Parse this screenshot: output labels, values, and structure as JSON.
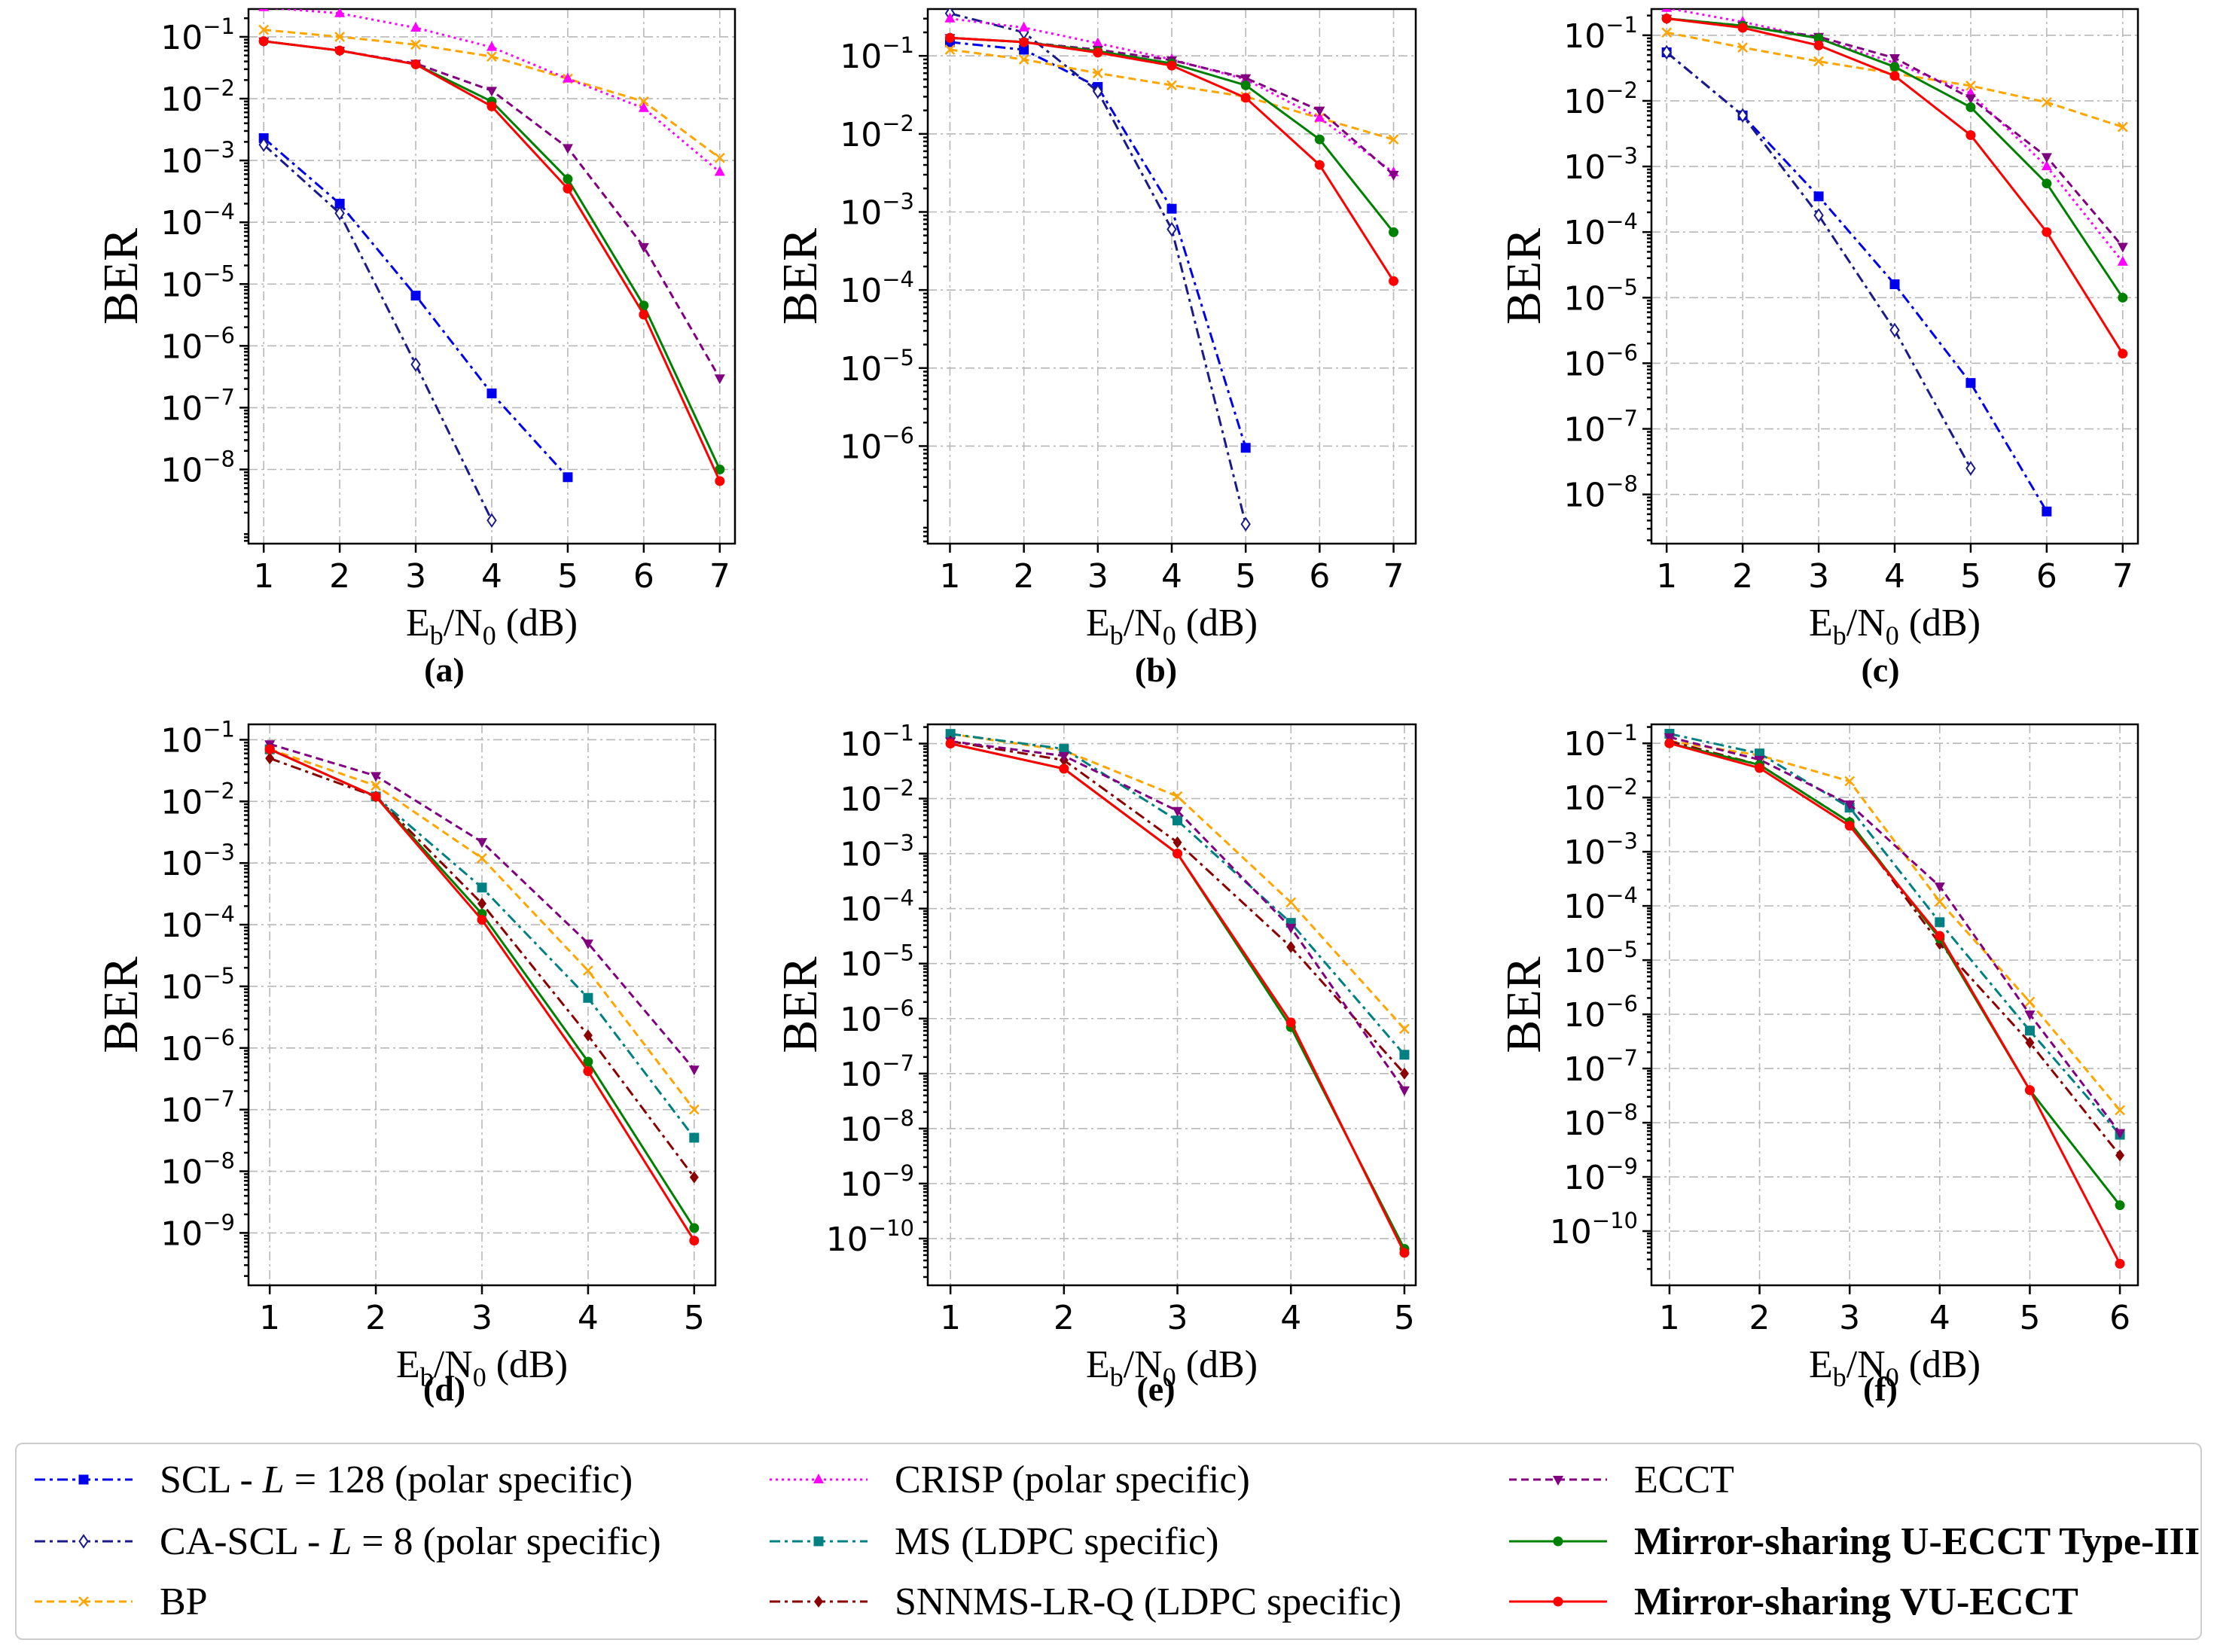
{
  "series_styles": [
    {
      "name": "SCL - L = 128 (polar specific)",
      "color": "#0000ee",
      "dash": "14 6 4 6",
      "marker": "square-filled",
      "legend_parts": [
        "SCL - ",
        "L",
        " = 128 (polar specific)"
      ],
      "bold": false
    },
    {
      "name": "CA-SCL - L = 8 (polar specific)",
      "color": "#1a1a8a",
      "dash": "14 6 4 6",
      "marker": "diamond-open",
      "legend_parts": [
        "CA-SCL - ",
        "L",
        " = 8 (polar specific)"
      ],
      "bold": false
    },
    {
      "name": "BP",
      "color": "#ffa500",
      "dash": "10 6",
      "marker": "x",
      "legend_parts": [
        "BP"
      ],
      "bold": false
    },
    {
      "name": "CRISP (polar specific)",
      "color": "#ff00ff",
      "dash": "3 5",
      "marker": "triangle-up",
      "legend_parts": [
        "CRISP (polar specific)"
      ],
      "bold": false
    },
    {
      "name": "MS (LDPC specific)",
      "color": "#008080",
      "dash": "14 6 4 6",
      "marker": "square-filled",
      "legend_parts": [
        "MS (LDPC specific)"
      ],
      "bold": false
    },
    {
      "name": "SNNMS-LR-Q (LDPC specific)",
      "color": "#8b0000",
      "dash": "14 6 4 6",
      "marker": "diamond-filled",
      "legend_parts": [
        "SNNMS-LR-Q (LDPC specific)"
      ],
      "bold": false
    },
    {
      "name": "ECCT",
      "color": "#800080",
      "dash": "10 6",
      "marker": "triangle-down",
      "legend_parts": [
        "ECCT"
      ],
      "bold": false
    },
    {
      "name": "Mirror-sharing U-ECCT Type-III",
      "color": "#008000",
      "dash": "",
      "marker": "circle",
      "legend_parts": [
        "Mirror-sharing U-ECCT Type-III"
      ],
      "bold": true
    },
    {
      "name": "Mirror-sharing VU-ECCT",
      "color": "#ff0000",
      "dash": "",
      "marker": "circle",
      "legend_parts": [
        "Mirror-sharing VU-ECCT"
      ],
      "bold": true
    }
  ],
  "chart_data": [
    {
      "panel_label": "(a)",
      "type": "line",
      "ylabel": "BER",
      "xlabel": "Eb/N0 (dB)",
      "xlim": [
        0.8,
        7.2
      ],
      "ylog_range": [
        -9.2,
        -0.55
      ],
      "xticks": [
        1,
        2,
        3,
        4,
        5,
        6,
        7
      ],
      "yticks_exp": [
        -1,
        -2,
        -3,
        -4,
        -5,
        -6,
        -7,
        -8
      ],
      "series": [
        {
          "name": "SCL - L = 128 (polar specific)",
          "x": [
            1,
            2,
            3,
            4,
            5
          ],
          "y": [
            0.0023,
            0.0002,
            6.5e-06,
            1.7e-07,
            7.5e-09
          ]
        },
        {
          "name": "CA-SCL - L = 8 (polar specific)",
          "x": [
            1,
            2,
            3,
            4
          ],
          "y": [
            0.0018,
            0.00014,
            5e-07,
            1.5e-09
          ]
        },
        {
          "name": "BP",
          "x": [
            1,
            2,
            3,
            4,
            5,
            6,
            7
          ],
          "y": [
            0.13,
            0.1,
            0.075,
            0.048,
            0.021,
            0.009,
            0.0011
          ]
        },
        {
          "name": "CRISP (polar specific)",
          "x": [
            1,
            2,
            3,
            4,
            5,
            6,
            7
          ],
          "y": [
            0.3,
            0.24,
            0.14,
            0.068,
            0.021,
            0.007,
            0.00065
          ]
        },
        {
          "name": "ECCT",
          "x": [
            1,
            2,
            3,
            4,
            5,
            6,
            7
          ],
          "y": [
            0.085,
            0.06,
            0.037,
            0.0135,
            0.0016,
            4e-05,
            3e-07
          ]
        },
        {
          "name": "Mirror-sharing U-ECCT Type-III",
          "x": [
            1,
            2,
            3,
            4,
            5,
            6,
            7
          ],
          "y": [
            0.085,
            0.06,
            0.036,
            0.009,
            0.0005,
            4.5e-06,
            1e-08
          ]
        },
        {
          "name": "Mirror-sharing VU-ECCT",
          "x": [
            1,
            2,
            3,
            4,
            5,
            6,
            7
          ],
          "y": [
            0.085,
            0.06,
            0.036,
            0.0075,
            0.00035,
            3.2e-06,
            6.5e-09
          ]
        }
      ]
    },
    {
      "panel_label": "(b)",
      "type": "line",
      "ylabel": "BER",
      "xlabel": "Eb/N0 (dB)",
      "xlim": [
        0.7,
        7.3
      ],
      "ylog_range": [
        -7.25,
        -0.4
      ],
      "xticks": [
        1,
        2,
        3,
        4,
        5,
        6,
        7
      ],
      "yticks_exp": [
        -1,
        -2,
        -3,
        -4,
        -5,
        -6
      ],
      "series": [
        {
          "name": "SCL - L = 128 (polar specific)",
          "x": [
            1,
            2,
            3,
            4,
            5
          ],
          "y": [
            0.15,
            0.12,
            0.04,
            0.0011,
            9.5e-07
          ]
        },
        {
          "name": "CA-SCL - L = 8 (polar specific)",
          "x": [
            1,
            2,
            3,
            4,
            5
          ],
          "y": [
            0.35,
            0.2,
            0.035,
            0.0006,
            1e-07
          ]
        },
        {
          "name": "BP",
          "x": [
            1,
            2,
            3,
            4,
            5,
            6,
            7
          ],
          "y": [
            0.12,
            0.09,
            0.06,
            0.042,
            0.03,
            0.016,
            0.0085
          ]
        },
        {
          "name": "CRISP (polar specific)",
          "x": [
            1,
            2,
            3,
            4,
            5,
            6,
            7
          ],
          "y": [
            0.3,
            0.23,
            0.145,
            0.09,
            0.05,
            0.016,
            0.0032
          ]
        },
        {
          "name": "ECCT",
          "x": [
            1,
            2,
            3,
            4,
            5,
            6,
            7
          ],
          "y": [
            0.17,
            0.15,
            0.12,
            0.088,
            0.052,
            0.02,
            0.003
          ]
        },
        {
          "name": "Mirror-sharing U-ECCT Type-III",
          "x": [
            1,
            2,
            3,
            4,
            5,
            6,
            7
          ],
          "y": [
            0.17,
            0.15,
            0.115,
            0.08,
            0.042,
            0.0085,
            0.00055
          ]
        },
        {
          "name": "Mirror-sharing VU-ECCT",
          "x": [
            1,
            2,
            3,
            4,
            5,
            6,
            7
          ],
          "y": [
            0.17,
            0.15,
            0.11,
            0.075,
            0.029,
            0.004,
            0.00013
          ]
        }
      ]
    },
    {
      "panel_label": "(c)",
      "type": "line",
      "ylabel": "BER",
      "xlabel": "Eb/N0 (dB)",
      "xlim": [
        0.8,
        7.2
      ],
      "ylog_range": [
        -8.75,
        -0.6
      ],
      "xticks": [
        1,
        2,
        3,
        4,
        5,
        6,
        7
      ],
      "yticks_exp": [
        -1,
        -2,
        -3,
        -4,
        -5,
        -6,
        -7,
        -8
      ],
      "series": [
        {
          "name": "SCL - L = 128 (polar specific)",
          "x": [
            1,
            2,
            3,
            4,
            5,
            6
          ],
          "y": [
            0.055,
            0.006,
            0.00035,
            1.6e-05,
            5e-07,
            5.5e-09
          ]
        },
        {
          "name": "CA-SCL - L = 8 (polar specific)",
          "x": [
            1,
            2,
            3,
            4,
            5
          ],
          "y": [
            0.055,
            0.006,
            0.00018,
            3.2e-06,
            2.5e-08
          ]
        },
        {
          "name": "BP",
          "x": [
            1,
            2,
            3,
            4,
            5,
            6,
            7
          ],
          "y": [
            0.11,
            0.065,
            0.04,
            0.026,
            0.017,
            0.0095,
            0.004
          ]
        },
        {
          "name": "CRISP (polar specific)",
          "x": [
            1,
            2,
            3,
            4,
            5,
            6,
            7
          ],
          "y": [
            0.26,
            0.16,
            0.09,
            0.038,
            0.013,
            0.001,
            3.5e-05
          ]
        },
        {
          "name": "ECCT",
          "x": [
            1,
            2,
            3,
            4,
            5,
            6,
            7
          ],
          "y": [
            0.18,
            0.14,
            0.095,
            0.045,
            0.011,
            0.0014,
            6e-05
          ]
        },
        {
          "name": "Mirror-sharing U-ECCT Type-III",
          "x": [
            1,
            2,
            3,
            4,
            5,
            6,
            7
          ],
          "y": [
            0.18,
            0.14,
            0.09,
            0.033,
            0.008,
            0.00055,
            1e-05
          ]
        },
        {
          "name": "Mirror-sharing VU-ECCT",
          "x": [
            1,
            2,
            3,
            4,
            5,
            6,
            7
          ],
          "y": [
            0.18,
            0.13,
            0.07,
            0.024,
            0.003,
            0.0001,
            1.4e-06
          ]
        }
      ]
    },
    {
      "panel_label": "(d)",
      "type": "line",
      "ylabel": "BER",
      "xlabel": "Eb/N0 (dB)",
      "xlim": [
        0.8,
        5.2
      ],
      "ylog_range": [
        -9.85,
        -0.75
      ],
      "xticks": [
        1,
        2,
        3,
        4,
        5
      ],
      "yticks_exp": [
        -1,
        -2,
        -3,
        -4,
        -5,
        -6,
        -7,
        -8,
        -9
      ],
      "series": [
        {
          "name": "BP",
          "x": [
            1,
            2,
            3,
            4,
            5
          ],
          "y": [
            0.07,
            0.018,
            0.0012,
            1.8e-05,
            1e-07
          ]
        },
        {
          "name": "MS (LDPC specific)",
          "x": [
            1,
            2,
            3,
            4,
            5
          ],
          "y": [
            0.07,
            0.012,
            0.0004,
            6.5e-06,
            3.5e-08
          ]
        },
        {
          "name": "SNNMS-LR-Q (LDPC specific)",
          "x": [
            1,
            2,
            3,
            4,
            5
          ],
          "y": [
            0.05,
            0.012,
            0.00022,
            1.6e-06,
            8e-09
          ]
        },
        {
          "name": "ECCT",
          "x": [
            1,
            2,
            3,
            4,
            5
          ],
          "y": [
            0.085,
            0.026,
            0.0022,
            5e-05,
            4.5e-07
          ]
        },
        {
          "name": "Mirror-sharing U-ECCT Type-III",
          "x": [
            1,
            2,
            3,
            4,
            5
          ],
          "y": [
            0.07,
            0.012,
            0.00015,
            6e-07,
            1.2e-09
          ]
        },
        {
          "name": "Mirror-sharing VU-ECCT",
          "x": [
            1,
            2,
            3,
            4,
            5
          ],
          "y": [
            0.07,
            0.012,
            0.00012,
            4.2e-07,
            7.5e-10
          ]
        }
      ]
    },
    {
      "panel_label": "(e)",
      "type": "line",
      "ylabel": "BER",
      "xlabel": "Eb/N0 (dB)",
      "xlim": [
        0.8,
        5.1
      ],
      "ylog_range": [
        -10.85,
        -0.65
      ],
      "xticks": [
        1,
        2,
        3,
        4,
        5
      ],
      "yticks_exp": [
        -1,
        -2,
        -3,
        -4,
        -5,
        -6,
        -7,
        -8,
        -9,
        -10
      ],
      "series": [
        {
          "name": "BP",
          "x": [
            1,
            2,
            3,
            4,
            5
          ],
          "y": [
            0.15,
            0.075,
            0.011,
            0.00013,
            6.5e-07
          ]
        },
        {
          "name": "MS (LDPC specific)",
          "x": [
            1,
            2,
            3,
            4,
            5
          ],
          "y": [
            0.15,
            0.08,
            0.004,
            5.5e-05,
            2.2e-07
          ]
        },
        {
          "name": "SNNMS-LR-Q (LDPC specific)",
          "x": [
            1,
            2,
            3,
            4,
            5
          ],
          "y": [
            0.11,
            0.05,
            0.0016,
            2e-05,
            1e-07
          ]
        },
        {
          "name": "ECCT",
          "x": [
            1,
            2,
            3,
            4,
            5
          ],
          "y": [
            0.11,
            0.06,
            0.006,
            4.5e-05,
            5e-08
          ]
        },
        {
          "name": "Mirror-sharing U-ECCT Type-III",
          "x": [
            1,
            2,
            3,
            4,
            5
          ],
          "y": [
            0.1,
            0.035,
            0.001,
            7e-07,
            6.5e-11
          ]
        },
        {
          "name": "Mirror-sharing VU-ECCT",
          "x": [
            1,
            2,
            3,
            4,
            5
          ],
          "y": [
            0.1,
            0.035,
            0.001,
            8.5e-07,
            5.5e-11
          ]
        }
      ]
    },
    {
      "panel_label": "(f)",
      "type": "line",
      "ylabel": "BER",
      "xlabel": "Eb/N0 (dB)",
      "xlim": [
        0.8,
        6.2
      ],
      "ylog_range": [
        -11.0,
        -0.65
      ],
      "xticks": [
        1,
        2,
        3,
        4,
        5,
        6
      ],
      "yticks_exp": [
        -1,
        -2,
        -3,
        -4,
        -5,
        -6,
        -7,
        -8,
        -9,
        -10
      ],
      "series": [
        {
          "name": "BP",
          "x": [
            1,
            2,
            3,
            4,
            5,
            6
          ],
          "y": [
            0.11,
            0.06,
            0.02,
            0.00012,
            1.7e-06,
            1.7e-08
          ]
        },
        {
          "name": "MS (LDPC specific)",
          "x": [
            1,
            2,
            3,
            4,
            5,
            6
          ],
          "y": [
            0.15,
            0.065,
            0.0065,
            5e-05,
            5e-07,
            6e-09
          ]
        },
        {
          "name": "SNNMS-LR-Q (LDPC specific)",
          "x": [
            1,
            2,
            3,
            4,
            5,
            6
          ],
          "y": [
            0.11,
            0.04,
            0.0035,
            2e-05,
            3e-07,
            2.5e-09
          ]
        },
        {
          "name": "ECCT",
          "x": [
            1,
            2,
            3,
            4,
            5,
            6
          ],
          "y": [
            0.13,
            0.05,
            0.0075,
            0.00023,
            1e-06,
            6.5e-09
          ]
        },
        {
          "name": "Mirror-sharing U-ECCT Type-III",
          "x": [
            1,
            2,
            3,
            4,
            5,
            6
          ],
          "y": [
            0.1,
            0.04,
            0.0035,
            2.5e-05,
            4e-08,
            3e-10
          ]
        },
        {
          "name": "Mirror-sharing VU-ECCT",
          "x": [
            1,
            2,
            3,
            4,
            5,
            6
          ],
          "y": [
            0.1,
            0.035,
            0.003,
            2.8e-05,
            4e-08,
            2.5e-11
          ]
        }
      ]
    }
  ]
}
